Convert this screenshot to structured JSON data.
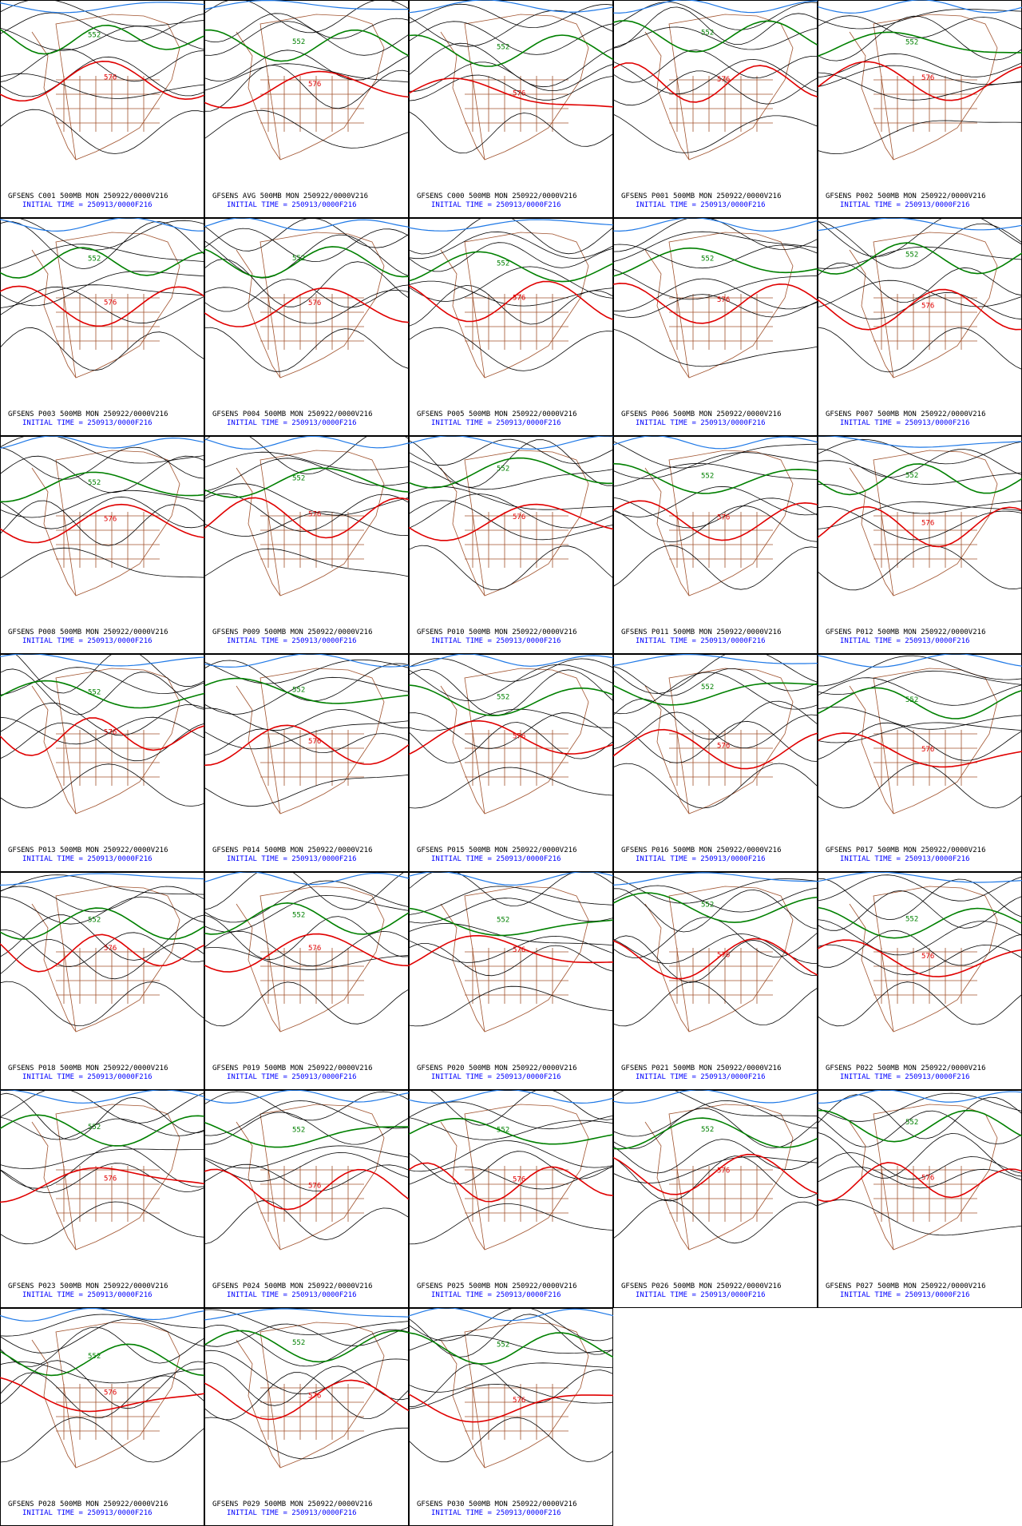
{
  "panels": [
    {
      "title": "GFSENS C001 500MB MON 250922/0000V216",
      "init": "INITIAL TIME = 250913/0000F216",
      "contour_labels": [
        "552",
        "576"
      ]
    },
    {
      "title": "GFSENS AVG 500MB MON 250922/0000V216",
      "init": "INITIAL TIME = 250913/0000F216",
      "contour_labels": [
        "552",
        "576"
      ]
    },
    {
      "title": "GFSENS C000 500MB MON 250922/0000V216",
      "init": "INITIAL TIME = 250913/0000F216",
      "contour_labels": [
        "552",
        "576"
      ]
    },
    {
      "title": "GFSENS P001 500MB MON 250922/0000V216",
      "init": "INITIAL TIME = 250913/0000F216",
      "contour_labels": [
        "552",
        "576"
      ]
    },
    {
      "title": "GFSENS P002 500MB MON 250922/0000V216",
      "init": "INITIAL TIME = 250913/0000F216",
      "contour_labels": [
        "552",
        "576"
      ]
    },
    {
      "title": "GFSENS P003 500MB MON 250922/0000V216",
      "init": "INITIAL TIME = 250913/0000F216",
      "contour_labels": [
        "552",
        "576"
      ]
    },
    {
      "title": "GFSENS P004 500MB MON 250922/0000V216",
      "init": "INITIAL TIME = 250913/0000F216",
      "contour_labels": [
        "552",
        "576"
      ]
    },
    {
      "title": "GFSENS P005 500MB MON 250922/0000V216",
      "init": "INITIAL TIME = 250913/0000F216",
      "contour_labels": [
        "552",
        "576"
      ]
    },
    {
      "title": "GFSENS P006 500MB MON 250922/0000V216",
      "init": "INITIAL TIME = 250913/0000F216",
      "contour_labels": [
        "552",
        "576"
      ]
    },
    {
      "title": "GFSENS P007 500MB MON 250922/0000V216",
      "init": "INITIAL TIME = 250913/0000F216",
      "contour_labels": [
        "552",
        "576"
      ]
    },
    {
      "title": "GFSENS P008 500MB MON 250922/0000V216",
      "init": "INITIAL TIME = 250913/0000F216",
      "contour_labels": [
        "552",
        "576"
      ]
    },
    {
      "title": "GFSENS P009 500MB MON 250922/0000V216",
      "init": "INITIAL TIME = 250913/0000F216",
      "contour_labels": [
        "552",
        "576"
      ]
    },
    {
      "title": "GFSENS P010 500MB MON 250922/0000V216",
      "init": "INITIAL TIME = 250913/0000F216",
      "contour_labels": [
        "552",
        "576"
      ]
    },
    {
      "title": "GFSENS P011 500MB MON 250922/0000V216",
      "init": "INITIAL TIME = 250913/0000F216",
      "contour_labels": [
        "552",
        "576"
      ]
    },
    {
      "title": "GFSENS P012 500MB MON 250922/0000V216",
      "init": "INITIAL TIME = 250913/0000F216",
      "contour_labels": [
        "552",
        "576"
      ]
    },
    {
      "title": "GFSENS P013 500MB MON 250922/0000V216",
      "init": "INITIAL TIME = 250913/0000F216",
      "contour_labels": [
        "552",
        "576"
      ]
    },
    {
      "title": "GFSENS P014 500MB MON 250922/0000V216",
      "init": "INITIAL TIME = 250913/0000F216",
      "contour_labels": [
        "552",
        "576"
      ]
    },
    {
      "title": "GFSENS P015 500MB MON 250922/0000V216",
      "init": "INITIAL TIME = 250913/0000F216",
      "contour_labels": [
        "552",
        "576"
      ]
    },
    {
      "title": "GFSENS P016 500MB MON 250922/0000V216",
      "init": "INITIAL TIME = 250913/0000F216",
      "contour_labels": [
        "552",
        "576"
      ]
    },
    {
      "title": "GFSENS P017 500MB MON 250922/0000V216",
      "init": "INITIAL TIME = 250913/0000F216",
      "contour_labels": [
        "552",
        "576"
      ]
    },
    {
      "title": "GFSENS P018 500MB MON 250922/0000V216",
      "init": "INITIAL TIME = 250913/0000F216",
      "contour_labels": [
        "552",
        "576"
      ]
    },
    {
      "title": "GFSENS P019 500MB MON 250922/0000V216",
      "init": "INITIAL TIME = 250913/0000F216",
      "contour_labels": [
        "552",
        "576"
      ]
    },
    {
      "title": "GFSENS P020 500MB MON 250922/0000V216",
      "init": "INITIAL TIME = 250913/0000F216",
      "contour_labels": [
        "552",
        "576"
      ]
    },
    {
      "title": "GFSENS P021 500MB MON 250922/0000V216",
      "init": "INITIAL TIME = 250913/0000F216",
      "contour_labels": [
        "552",
        "576"
      ]
    },
    {
      "title": "GFSENS P022 500MB MON 250922/0000V216",
      "init": "INITIAL TIME = 250913/0000F216",
      "contour_labels": [
        "552",
        "576"
      ]
    },
    {
      "title": "GFSENS P023 500MB MON 250922/0000V216",
      "init": "INITIAL TIME = 250913/0000F216",
      "contour_labels": [
        "552",
        "576"
      ]
    },
    {
      "title": "GFSENS P024 500MB MON 250922/0000V216",
      "init": "INITIAL TIME = 250913/0000F216",
      "contour_labels": [
        "552",
        "576"
      ]
    },
    {
      "title": "GFSENS P025 500MB MON 250922/0000V216",
      "init": "INITIAL TIME = 250913/0000F216",
      "contour_labels": [
        "552",
        "576"
      ]
    },
    {
      "title": "GFSENS P026 500MB MON 250922/0000V216",
      "init": "INITIAL TIME = 250913/0000F216",
      "contour_labels": [
        "552",
        "576"
      ]
    },
    {
      "title": "GFSENS P027 500MB MON 250922/0000V216",
      "init": "INITIAL TIME = 250913/0000F216",
      "contour_labels": [
        "552",
        "576"
      ]
    },
    {
      "title": "GFSENS P028 500MB MON 250922/0000V216",
      "init": "INITIAL TIME = 250913/0000F216",
      "contour_labels": [
        "552",
        "576"
      ]
    },
    {
      "title": "GFSENS P029 500MB MON 250922/0000V216",
      "init": "INITIAL TIME = 250913/0000F216",
      "contour_labels": [
        "552",
        "576"
      ]
    },
    {
      "title": "GFSENS P030 500MB MON 250922/0000V216",
      "init": "INITIAL TIME = 250913/0000F216",
      "contour_labels": [
        "552",
        "576"
      ]
    }
  ]
}
